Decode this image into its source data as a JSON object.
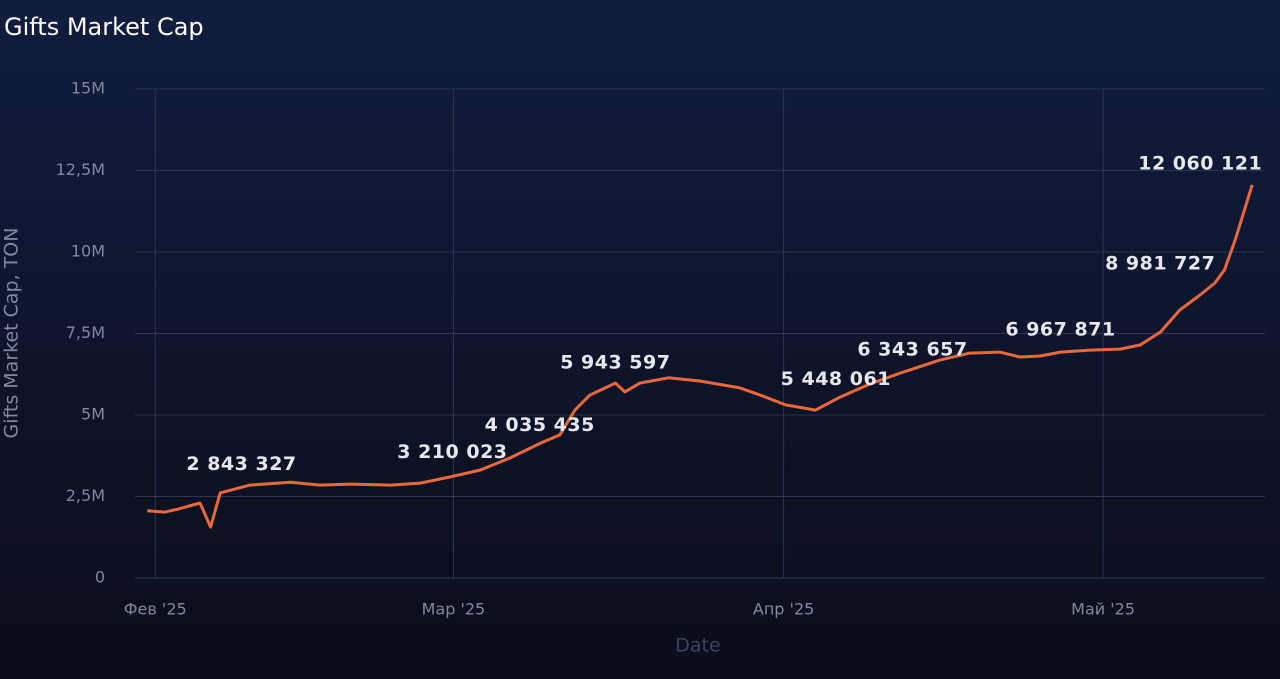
{
  "chart_data": {
    "type": "line",
    "title": "Gifts Market Cap",
    "x_label": "Date",
    "y_label": "Gifts Market Cap, TON",
    "color": "#e8683c",
    "grid": true,
    "x": [
      -0.75,
      0.9,
      2.2,
      4.2,
      5.2,
      6.1,
      8.9,
      12.7,
      15.5,
      18.3,
      22.1,
      24.9,
      27.7,
      30.5,
      33.3,
      36.2,
      38.0,
      39.4,
      40.8,
      43.2,
      44.1,
      45.5,
      48.2,
      51.2,
      54.9,
      56.8,
      59.2,
      62.0,
      64.3,
      67.1,
      70.0,
      73.7,
      76.5,
      79.3,
      81.2,
      83.1,
      85.0,
      87.8,
      90.6,
      92.5,
      94.4,
      96.2,
      98.1,
      99.5,
      100.4,
      101.4,
      103.0
    ],
    "values": [
      2060000,
      2020000,
      2120000,
      2300000,
      1560000,
      2610000,
      2850000,
      2940000,
      2850000,
      2880000,
      2850000,
      2910000,
      3100000,
      3310000,
      3680000,
      4140000,
      4390000,
      5150000,
      5610000,
      5980000,
      5710000,
      5980000,
      6140000,
      6040000,
      5830000,
      5610000,
      5310000,
      5150000,
      5550000,
      5950000,
      6290000,
      6690000,
      6900000,
      6930000,
      6780000,
      6810000,
      6930000,
      6990000,
      7020000,
      7150000,
      7550000,
      8220000,
      8680000,
      9050000,
      9450000,
      10370000,
      12060121
    ],
    "annotations": [
      {
        "x": 8.1,
        "value": 2843327,
        "label": "2 843 327"
      },
      {
        "x": 27.9,
        "value": 3210023,
        "label": "3 210 023"
      },
      {
        "x": 36.1,
        "value": 4035435,
        "label": "4 035 435"
      },
      {
        "x": 43.2,
        "value": 5943597,
        "label": "5 943 597"
      },
      {
        "x": 63.9,
        "value": 5448061,
        "label": "5 448 061"
      },
      {
        "x": 71.1,
        "value": 6343657,
        "label": "6 343 657"
      },
      {
        "x": 85.0,
        "value": 6967871,
        "label": "6 967 871"
      },
      {
        "x": 98.6,
        "value": 8981727,
        "label": "8 981 727"
      },
      {
        "x": 103.0,
        "value": 12060121,
        "label": "12 060 121"
      }
    ],
    "xlim": [
      -1.9,
      104.2
    ],
    "xticks": [
      {
        "value": 0,
        "label": "Фев '25"
      },
      {
        "value": 28,
        "label": "Мар '25"
      },
      {
        "value": 59,
        "label": "Апр '25"
      },
      {
        "value": 89,
        "label": "Май '25"
      }
    ],
    "ylim": [
      0,
      15000000
    ],
    "yticks": [
      0,
      {
        "value": 2500000,
        "label": "2,5M"
      },
      {
        "value": 5000000,
        "label": "5M"
      },
      {
        "value": 7500000,
        "label": "7,5M"
      },
      {
        "value": 10000000,
        "label": "10M"
      },
      {
        "value": 12500000,
        "label": "12,5M"
      },
      {
        "value": 15000000,
        "label": "15M"
      }
    ]
  }
}
